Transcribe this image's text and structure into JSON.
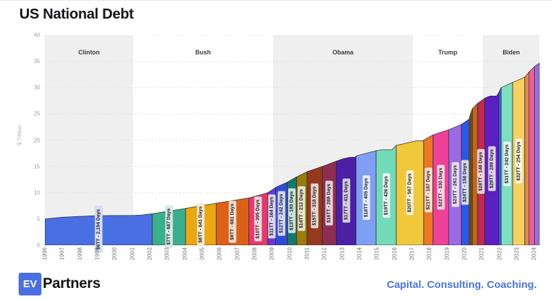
{
  "title": "US National Debt",
  "footer": {
    "logo_text": "EV",
    "brand": "Partners",
    "tagline": "Capital. Consulting. Coaching.",
    "accent_color": "#4a6fe3"
  },
  "chart_data": {
    "type": "area",
    "title": "US National Debt",
    "ylabel": "$ Trillion",
    "ylim": [
      0,
      40
    ],
    "yticks": [
      0,
      5,
      10,
      15,
      20,
      25,
      30,
      35,
      40
    ],
    "xticks": [
      1996,
      1997,
      1998,
      1999,
      2000,
      2001,
      2002,
      2003,
      2004,
      2005,
      2006,
      2007,
      2008,
      2009,
      2010,
      2011,
      2012,
      2013,
      2014,
      2015,
      2016,
      2017,
      2018,
      2019,
      2020,
      2021,
      2022,
      2023,
      2024
    ],
    "x_range": [
      1996.0,
      2024.3
    ],
    "grid": "dashed-horizontal",
    "shade_color": "#efefef",
    "outline_color": "#26262b",
    "presidents": [
      {
        "name": "Clinton",
        "start": 1996.0,
        "end": 2001.05,
        "shaded": true
      },
      {
        "name": "Bush",
        "start": 2001.05,
        "end": 2009.05,
        "shaded": false
      },
      {
        "name": "Obama",
        "start": 2009.05,
        "end": 2017.05,
        "shaded": true
      },
      {
        "name": "Trump",
        "start": 2017.05,
        "end": 2021.05,
        "shaded": false
      },
      {
        "name": "Biden",
        "start": 2021.05,
        "end": 2024.3,
        "shaded": true
      }
    ],
    "label_format": {
      "prefix": "$",
      "mid": "T - ",
      "suffix": " Days"
    },
    "bands": [
      {
        "milestone": "6T",
        "days": "2,194",
        "color": "#4a6fe3",
        "start_year": 1996.0,
        "end_year": 2002.15,
        "start_value": 5.0,
        "end_value": 6.0,
        "points": [
          [
            1996.0,
            5.0
          ],
          [
            1997.0,
            5.32
          ],
          [
            1998.0,
            5.5
          ],
          [
            1999.0,
            5.62
          ],
          [
            2000.0,
            5.67
          ],
          [
            2000.9,
            5.66
          ],
          [
            2001.5,
            5.75
          ],
          [
            2002.15,
            6.0
          ]
        ]
      },
      {
        "milestone": "7T",
        "days": "687",
        "color": "#3bae8c",
        "start_year": 2002.15,
        "end_year": 2004.05,
        "start_value": 6.0,
        "end_value": 7.0
      },
      {
        "milestone": "8T",
        "days": "641",
        "color": "#e8a713",
        "start_year": 2004.05,
        "end_year": 2005.8,
        "start_value": 7.0,
        "end_value": 8.0
      },
      {
        "milestone": "9T",
        "days": "681",
        "color": "#dc6118",
        "start_year": 2005.8,
        "end_year": 2007.67,
        "start_value": 8.0,
        "end_value": 9.0
      },
      {
        "milestone": "10T",
        "days": "395",
        "color": "#e63a6e",
        "start_year": 2007.67,
        "end_year": 2008.75,
        "start_value": 9.0,
        "end_value": 10.0
      },
      {
        "milestone": "11T",
        "days": "164",
        "color": "#6a35db",
        "start_year": 2008.75,
        "end_year": 2009.2,
        "start_value": 10.0,
        "end_value": 11.0
      },
      {
        "milestone": "12T",
        "days": "242",
        "color": "#2f4bd4",
        "start_year": 2009.2,
        "end_year": 2009.87,
        "start_value": 11.0,
        "end_value": 12.0
      },
      {
        "milestone": "13T",
        "days": "193",
        "color": "#17776b",
        "start_year": 2009.87,
        "end_year": 2010.4,
        "start_value": 12.0,
        "end_value": 13.0
      },
      {
        "milestone": "14T",
        "days": "212",
        "color": "#997b0e",
        "start_year": 2010.4,
        "end_year": 2011.0,
        "start_value": 13.0,
        "end_value": 14.0
      },
      {
        "milestone": "15T",
        "days": "318",
        "color": "#943a1e",
        "start_year": 2011.0,
        "end_year": 2011.87,
        "start_value": 14.0,
        "end_value": 15.0
      },
      {
        "milestone": "16T",
        "days": "289",
        "color": "#8e2d52",
        "start_year": 2011.87,
        "end_year": 2012.67,
        "start_value": 15.0,
        "end_value": 16.0
      },
      {
        "milestone": "17T",
        "days": "411",
        "color": "#4b1fa6",
        "start_year": 2012.67,
        "end_year": 2013.8,
        "start_value": 16.0,
        "end_value": 17.0,
        "points": [
          [
            2012.67,
            16.0
          ],
          [
            2013.1,
            16.5
          ],
          [
            2013.45,
            16.74
          ],
          [
            2013.76,
            16.74
          ],
          [
            2013.8,
            17.0
          ]
        ]
      },
      {
        "milestone": "18T",
        "days": "405",
        "color": "#7e9ff3",
        "start_year": 2013.8,
        "end_year": 2014.95,
        "start_value": 17.0,
        "end_value": 18.0
      },
      {
        "milestone": "19T",
        "days": "426",
        "color": "#74dbb8",
        "start_year": 2014.95,
        "end_year": 2016.1,
        "start_value": 18.0,
        "end_value": 19.0,
        "points": [
          [
            2014.95,
            18.0
          ],
          [
            2015.25,
            18.15
          ],
          [
            2015.85,
            18.15
          ],
          [
            2016.1,
            19.0
          ]
        ]
      },
      {
        "milestone": "20T",
        "days": "567",
        "color": "#f0c83c",
        "start_year": 2016.1,
        "end_year": 2017.67,
        "start_value": 19.0,
        "end_value": 20.0,
        "points": [
          [
            2016.1,
            19.0
          ],
          [
            2016.9,
            19.6
          ],
          [
            2017.25,
            19.85
          ],
          [
            2017.62,
            19.85
          ],
          [
            2017.67,
            20.0
          ]
        ]
      },
      {
        "milestone": "21T",
        "days": "187",
        "color": "#ec7727",
        "start_year": 2017.67,
        "end_year": 2018.2,
        "start_value": 20.0,
        "end_value": 21.0
      },
      {
        "milestone": "22T",
        "days": "330",
        "color": "#ee4197",
        "start_year": 2018.2,
        "end_year": 2019.1,
        "start_value": 21.0,
        "end_value": 22.0
      },
      {
        "milestone": "23T",
        "days": "261",
        "color": "#9b6be3",
        "start_year": 2019.1,
        "end_year": 2019.83,
        "start_value": 22.0,
        "end_value": 23.0
      },
      {
        "milestone": "24T",
        "days": "158",
        "color": "#2e57e5",
        "start_year": 2019.83,
        "end_year": 2020.27,
        "start_value": 23.0,
        "end_value": 24.0
      },
      {
        "milestone": "25T",
        "days": null,
        "color": "#6f6f12",
        "start_year": 2020.27,
        "end_year": 2020.35,
        "start_value": 24.0,
        "end_value": 25.0
      },
      {
        "milestone": "26T",
        "days": null,
        "color": "#8a4e18",
        "start_year": 2020.35,
        "end_year": 2020.45,
        "start_value": 25.0,
        "end_value": 26.0
      },
      {
        "milestone": "27T",
        "days": null,
        "color": "#c2661c",
        "start_year": 2020.45,
        "end_year": 2020.75,
        "start_value": 26.0,
        "end_value": 27.0
      },
      {
        "milestone": "28T",
        "days": "148",
        "color": "#c02a50",
        "start_year": 2020.75,
        "end_year": 2021.17,
        "start_value": 27.0,
        "end_value": 28.0
      },
      {
        "milestone": "29T",
        "days": "289",
        "color": "#5c1fc2",
        "start_year": 2021.17,
        "end_year": 2021.95,
        "start_value": 28.0,
        "end_value": 29.0,
        "points": [
          [
            2021.17,
            28.0
          ],
          [
            2021.45,
            28.4
          ],
          [
            2021.85,
            28.43
          ],
          [
            2021.95,
            29.0
          ]
        ]
      },
      {
        "milestone": "30T",
        "days": null,
        "color": "#3a5be0",
        "start_year": 2021.95,
        "end_year": 2022.1,
        "start_value": 29.0,
        "end_value": 30.0
      },
      {
        "milestone": "31T",
        "days": "242",
        "color": "#7edec0",
        "start_year": 2022.1,
        "end_year": 2022.76,
        "start_value": 30.0,
        "end_value": 31.0
      },
      {
        "milestone": "32T",
        "days": "254",
        "color": "#f5d161",
        "start_year": 2022.76,
        "end_year": 2023.45,
        "start_value": 31.0,
        "end_value": 32.0
      },
      {
        "milestone": "33T",
        "days": null,
        "color": "#e08a4d",
        "start_year": 2023.45,
        "end_year": 2023.7,
        "start_value": 32.0,
        "end_value": 33.0
      },
      {
        "milestone": "34T",
        "days": null,
        "color": "#ec5e9d",
        "start_year": 2023.7,
        "end_year": 2024.0,
        "start_value": 33.0,
        "end_value": 34.0
      },
      {
        "milestone": "35T",
        "days": null,
        "color": "#9a6ed5",
        "start_year": 2024.0,
        "end_year": 2024.3,
        "start_value": 34.0,
        "end_value": 34.7
      }
    ]
  }
}
